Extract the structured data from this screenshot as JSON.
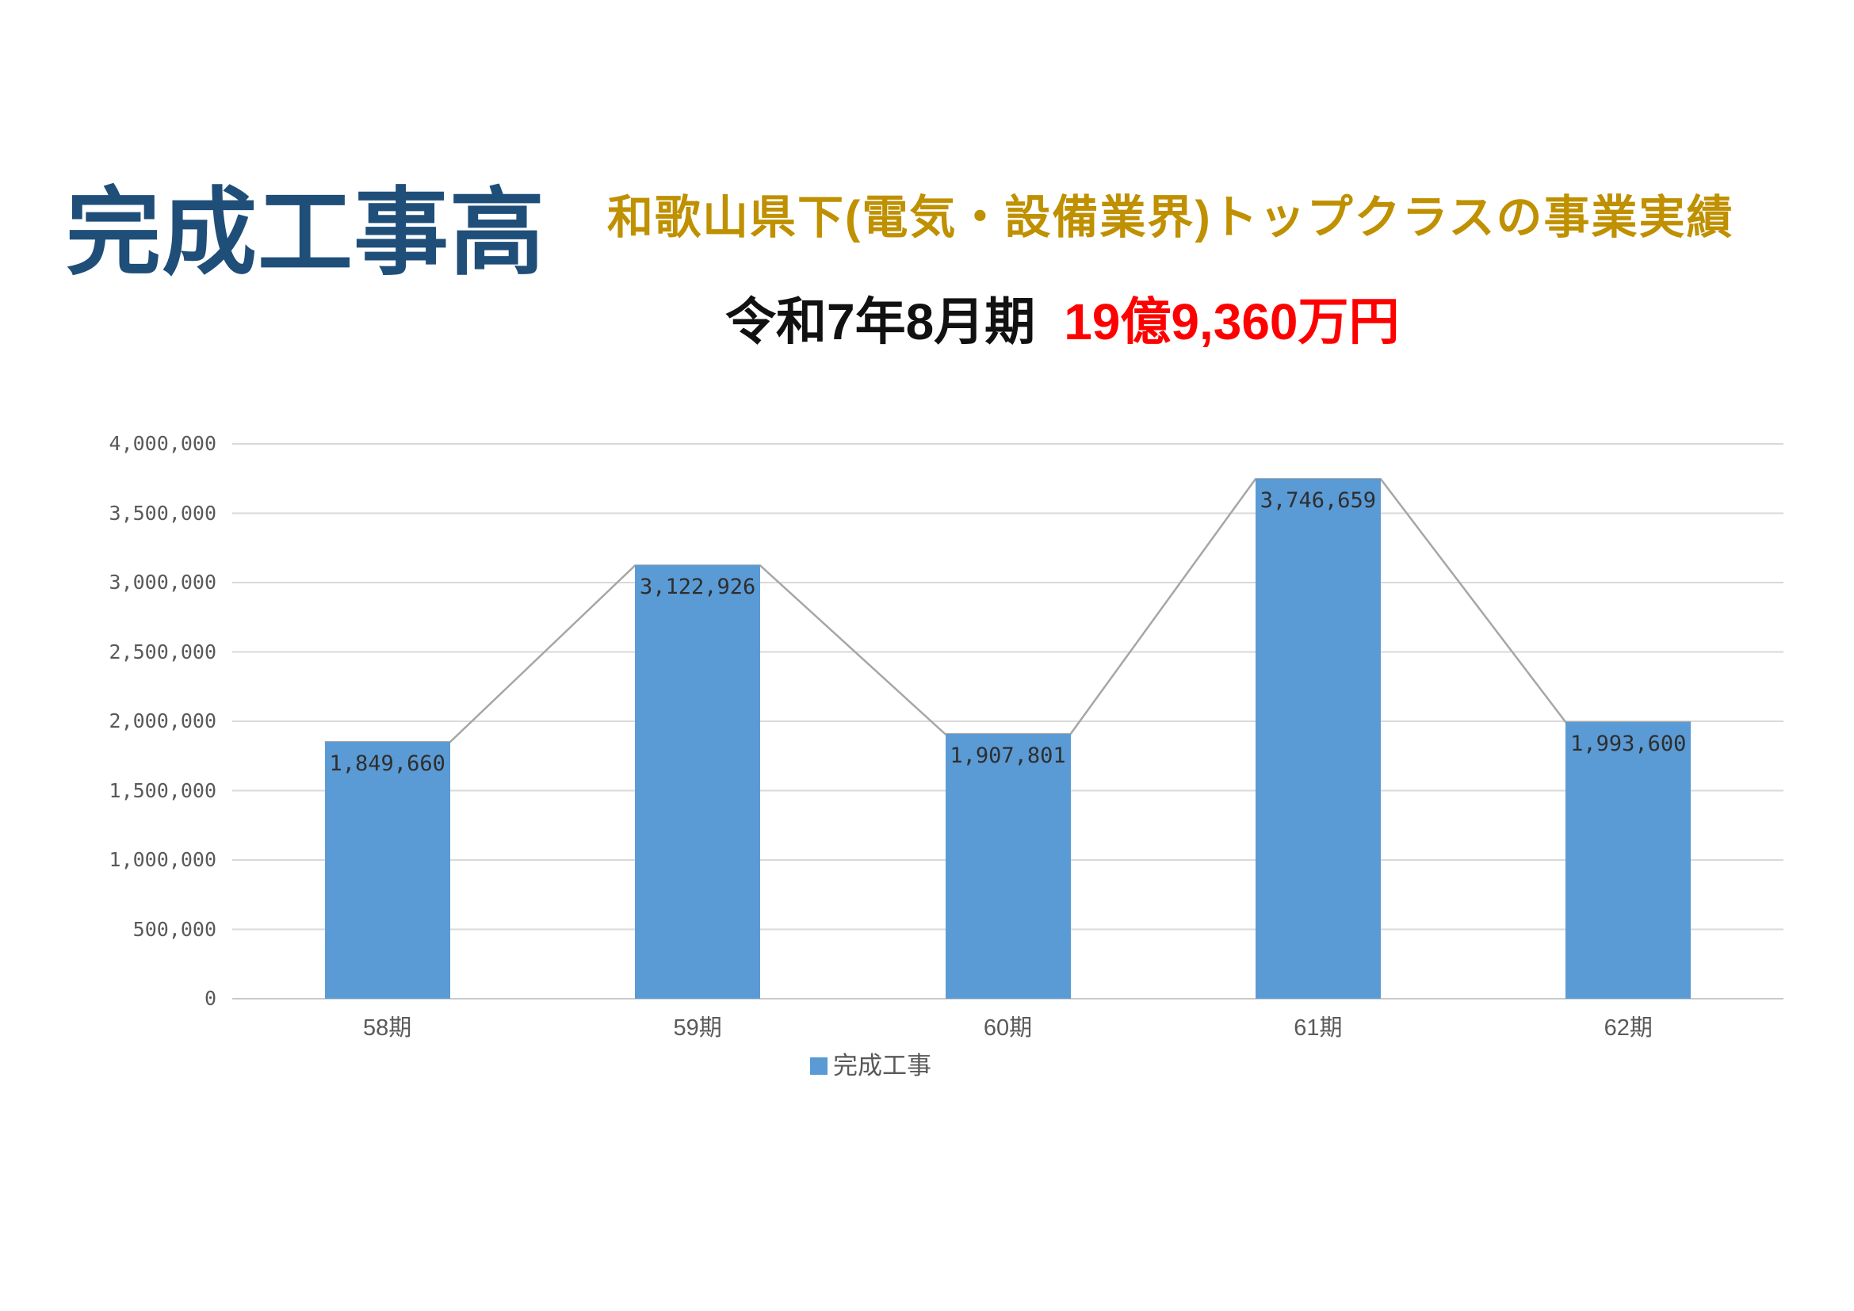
{
  "header": {
    "title": "完成工事高",
    "title_color": "#1f4e79",
    "subtitle": "和歌山県下(電気・設備業界)トップクラスの事業実績",
    "subtitle_color": "#bf9000",
    "period_label": "令和7年8月期",
    "period_value": "19億9,360万円",
    "period_value_color": "#ff0000"
  },
  "chart_data": {
    "type": "bar",
    "title": "",
    "categories": [
      "58期",
      "59期",
      "60期",
      "61期",
      "62期"
    ],
    "series": [
      {
        "name": "完成工事",
        "values": [
          1849660,
          3122926,
          1907801,
          3746659,
          1993600
        ]
      }
    ],
    "data_labels": [
      "1,849,660",
      "3,122,926",
      "1,907,801",
      "3,746,659",
      "1,993,600"
    ],
    "y_tick_labels": [
      "4,000,000",
      "3,500,000",
      "3,000,000",
      "2,500,000",
      "2,000,000",
      "1,500,000",
      "1,000,000",
      "500,000",
      "0"
    ],
    "ylim": [
      0,
      4000000
    ],
    "y_tick_step": 500000,
    "grid": true,
    "has_connector_line": true,
    "bar_color": "#5b9bd5",
    "connector_line_color": "#a6a6a6",
    "gridline_color": "#d9d9d9",
    "axis_text_color": "#595959",
    "legend": {
      "label": "完成工事",
      "position": "bottom-center",
      "marker_color": "#5b9bd5"
    }
  }
}
